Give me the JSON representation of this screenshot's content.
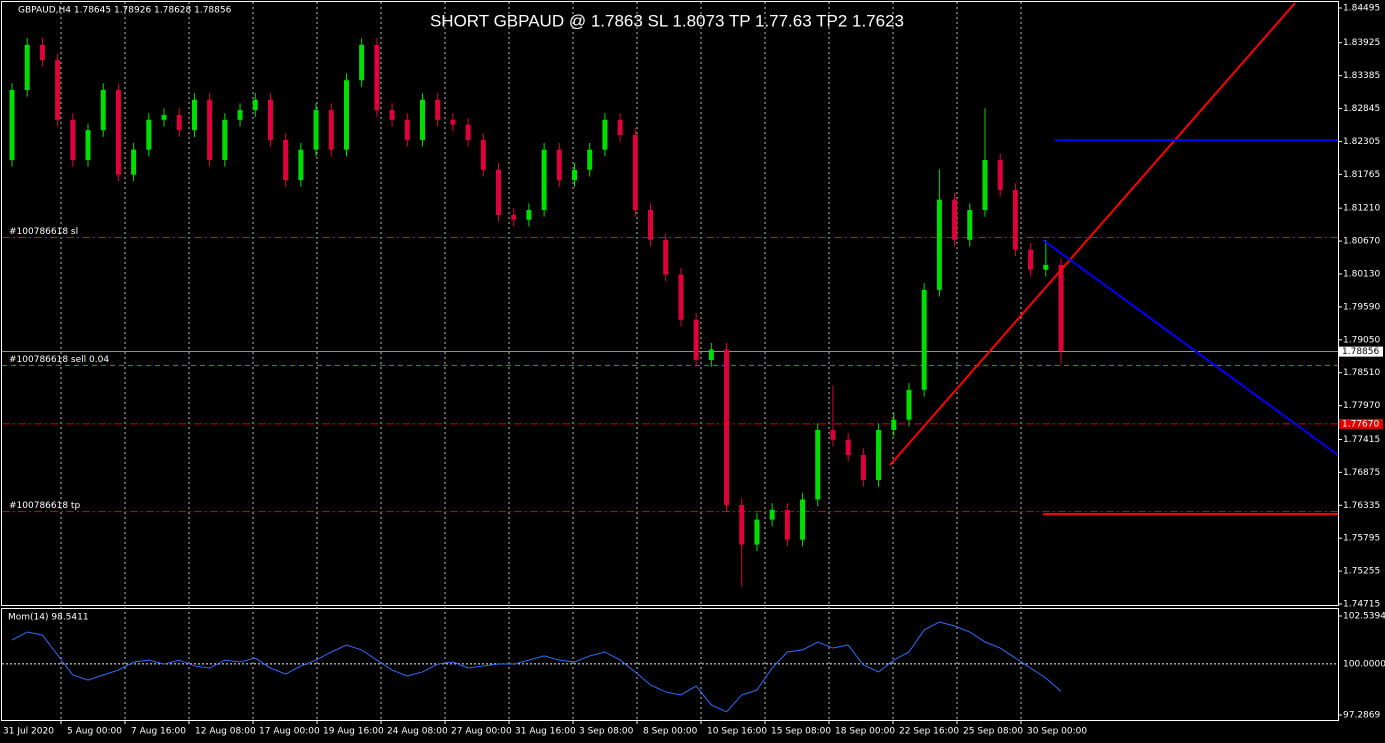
{
  "chart_data": {
    "type": "candlestick",
    "title": "SHORT GBPAUD @ 1.7863 SL 1.8073 TP 1.77.63 TP2 1.7623",
    "header": "GBPAUD,H4  1.78645 1.78926 1.78628 1.78856",
    "up_color": "#00e000",
    "down_color": "#e0003c",
    "grid": "vertical",
    "ylim": [
      1.74715,
      1.84495
    ],
    "yticks": [
      1.84495,
      1.83925,
      1.83385,
      1.82845,
      1.82305,
      1.81765,
      {
        "value": 1.8121,
        "label": "1.81210"
      },
      {
        "value": 1.8067,
        "label": "1.80670"
      },
      {
        "value": 1.8013,
        "label": "1.80130"
      },
      {
        "value": 1.7959,
        "label": "1.79590"
      },
      {
        "value": 1.7905,
        "label": "1.79050"
      },
      {
        "value": 1.7851,
        "label": "1.78510"
      },
      {
        "value": 1.7797,
        "label": "1.77970"
      },
      1.77415,
      1.76875,
      1.76335,
      1.75795,
      1.75255,
      1.74715
    ],
    "x_labels": [
      "31 Jul 2020",
      "5 Aug 00:00",
      "7 Aug 16:00",
      "12 Aug 08:00",
      "17 Aug 00:00",
      "19 Aug 16:00",
      "24 Aug 08:00",
      "27 Aug 00:00",
      "31 Aug 16:00",
      "3 Sep 08:00",
      "8 Sep 00:00",
      "10 Sep 16:00",
      "15 Sep 08:00",
      "18 Sep 00:00",
      "22 Sep 16:00",
      "25 Sep 08:00",
      "30 Sep 00:00"
    ],
    "open": [
      1.82,
      1.8315,
      1.8389,
      1.8364,
      1.8266,
      1.82,
      1.8249,
      1.8315,
      1.8176,
      1.8217,
      1.8266,
      1.8274,
      1.8249,
      1.8299,
      1.82,
      1.8266,
      1.8282,
      1.8299,
      1.8233,
      1.8167,
      1.8217,
      1.8282,
      1.8217,
      1.8331,
      1.8389,
      1.8282,
      1.8266,
      1.8233,
      1.8299,
      1.8266,
      1.8258,
      1.8233,
      1.8184,
      1.811,
      1.8102,
      1.8118,
      1.8217,
      1.8167,
      1.8184,
      1.8217,
      1.8266,
      1.8241,
      1.8118,
      1.8069,
      1.8012,
      1.7938,
      1.7872,
      1.7889,
      1.7634,
      1.7569,
      1.761,
      1.7626,
      1.7577,
      1.7643,
      1.7757,
      1.7741,
      1.7716,
      1.7675,
      1.7757,
      1.7774,
      1.7823,
      1.7987,
      1.8135,
      1.8069,
      1.8118,
      1.82,
      1.8151,
      1.8053,
      1.802,
      1.8028
    ],
    "high": [
      1.8326,
      1.84,
      1.84,
      1.8375,
      1.8277,
      1.826,
      1.8326,
      1.8326,
      1.8228,
      1.8277,
      1.8285,
      1.8285,
      1.831,
      1.831,
      1.8277,
      1.8293,
      1.831,
      1.831,
      1.8244,
      1.8228,
      1.8293,
      1.8293,
      1.8342,
      1.84,
      1.84,
      1.8293,
      1.8277,
      1.831,
      1.831,
      1.8277,
      1.8269,
      1.8244,
      1.8195,
      1.8121,
      1.8129,
      1.8228,
      1.8228,
      1.8195,
      1.8228,
      1.8277,
      1.8277,
      1.8252,
      1.8129,
      1.808,
      1.8023,
      1.7949,
      1.79,
      1.79,
      1.7645,
      1.7621,
      1.7637,
      1.7637,
      1.7654,
      1.7768,
      1.783,
      1.7752,
      1.7727,
      1.7768,
      1.7785,
      1.7834,
      1.7998,
      1.8185,
      1.8146,
      1.8129,
      1.8285,
      1.8211,
      1.8162,
      1.8064,
      1.8069,
      1.8039
    ],
    "low": [
      1.8189,
      1.8304,
      1.8353,
      1.8255,
      1.8189,
      1.8189,
      1.8238,
      1.8165,
      1.8165,
      1.8206,
      1.8255,
      1.8238,
      1.8238,
      1.8189,
      1.8189,
      1.8255,
      1.8271,
      1.8222,
      1.8156,
      1.8156,
      1.8206,
      1.8206,
      1.8206,
      1.832,
      1.8271,
      1.8255,
      1.8222,
      1.8222,
      1.8255,
      1.8247,
      1.8222,
      1.8173,
      1.8099,
      1.8091,
      1.8091,
      1.8107,
      1.8156,
      1.8156,
      1.8173,
      1.8206,
      1.823,
      1.8107,
      1.8058,
      1.8001,
      1.7927,
      1.7861,
      1.7861,
      1.7623,
      1.75,
      1.7558,
      1.7599,
      1.7566,
      1.7566,
      1.7632,
      1.773,
      1.7705,
      1.7664,
      1.7664,
      1.7746,
      1.7763,
      1.7812,
      1.7976,
      1.8058,
      1.8058,
      1.8107,
      1.814,
      1.8042,
      1.8009,
      1.8009,
      1.7865
    ],
    "close": [
      1.8315,
      1.8389,
      1.8364,
      1.8266,
      1.82,
      1.8249,
      1.8315,
      1.8176,
      1.8217,
      1.8266,
      1.8274,
      1.8249,
      1.8299,
      1.82,
      1.8266,
      1.8282,
      1.8299,
      1.8233,
      1.8167,
      1.8217,
      1.8282,
      1.8217,
      1.8331,
      1.8389,
      1.8282,
      1.8266,
      1.8233,
      1.8299,
      1.8266,
      1.8258,
      1.8233,
      1.8184,
      1.811,
      1.8102,
      1.8118,
      1.8217,
      1.8167,
      1.8184,
      1.8217,
      1.8266,
      1.8241,
      1.8118,
      1.8069,
      1.8012,
      1.7938,
      1.7872,
      1.7889,
      1.7634,
      1.7569,
      1.761,
      1.7626,
      1.7577,
      1.7643,
      1.7757,
      1.7741,
      1.7716,
      1.7675,
      1.7757,
      1.7774,
      1.7823,
      1.7987,
      1.8135,
      1.8069,
      1.8118,
      1.82,
      1.8151,
      1.8053,
      1.802,
      1.8028,
      1.7886
    ],
    "levels": [
      {
        "label": "#100786618 sl",
        "value": 1.8073,
        "color": "#e00000",
        "dash": "8 3 2 3"
      },
      {
        "label": "#100786618 sell 0.04",
        "value": 1.7863,
        "color": "#00c000",
        "dash": "5 4"
      },
      {
        "label": "#100786618 tp",
        "value": 1.7623,
        "color": "#e00000",
        "dash": "8 3 2 3"
      }
    ],
    "marker_line": {
      "value": 1.7767,
      "label": "1.77670",
      "color": "#e00000"
    },
    "current_price": 1.78856,
    "indicator": {
      "type": "line",
      "label": "Mom(14) 98.5411",
      "color": "#2f6fff",
      "ylim": [
        97.2869,
        102.5394
      ],
      "yticks": [
        102.5394,
        {
          "value": 100,
          "label": "100.0000"
        },
        97.2869
      ],
      "values": [
        101.27,
        101.69,
        101.53,
        100.47,
        99.41,
        99.14,
        99.41,
        99.67,
        100.1,
        100.2,
        99.99,
        100.2,
        99.89,
        99.78,
        100.2,
        100.1,
        100.31,
        99.78,
        99.46,
        99.89,
        100.2,
        100.63,
        101.0,
        100.74,
        100.2,
        99.67,
        99.36,
        99.57,
        99.99,
        100.1,
        99.78,
        99.89,
        99.99,
        99.99,
        100.2,
        100.42,
        100.2,
        100.1,
        100.42,
        100.63,
        100.2,
        99.57,
        98.88,
        98.51,
        98.35,
        98.83,
        97.82,
        97.45,
        98.35,
        98.61,
        99.78,
        100.63,
        100.74,
        101.16,
        100.84,
        101.0,
        99.94,
        99.57,
        100.2,
        100.63,
        101.8,
        102.22,
        102.01,
        101.69,
        101.16,
        100.84,
        100.31,
        99.78,
        99.25,
        98.54
      ]
    }
  }
}
